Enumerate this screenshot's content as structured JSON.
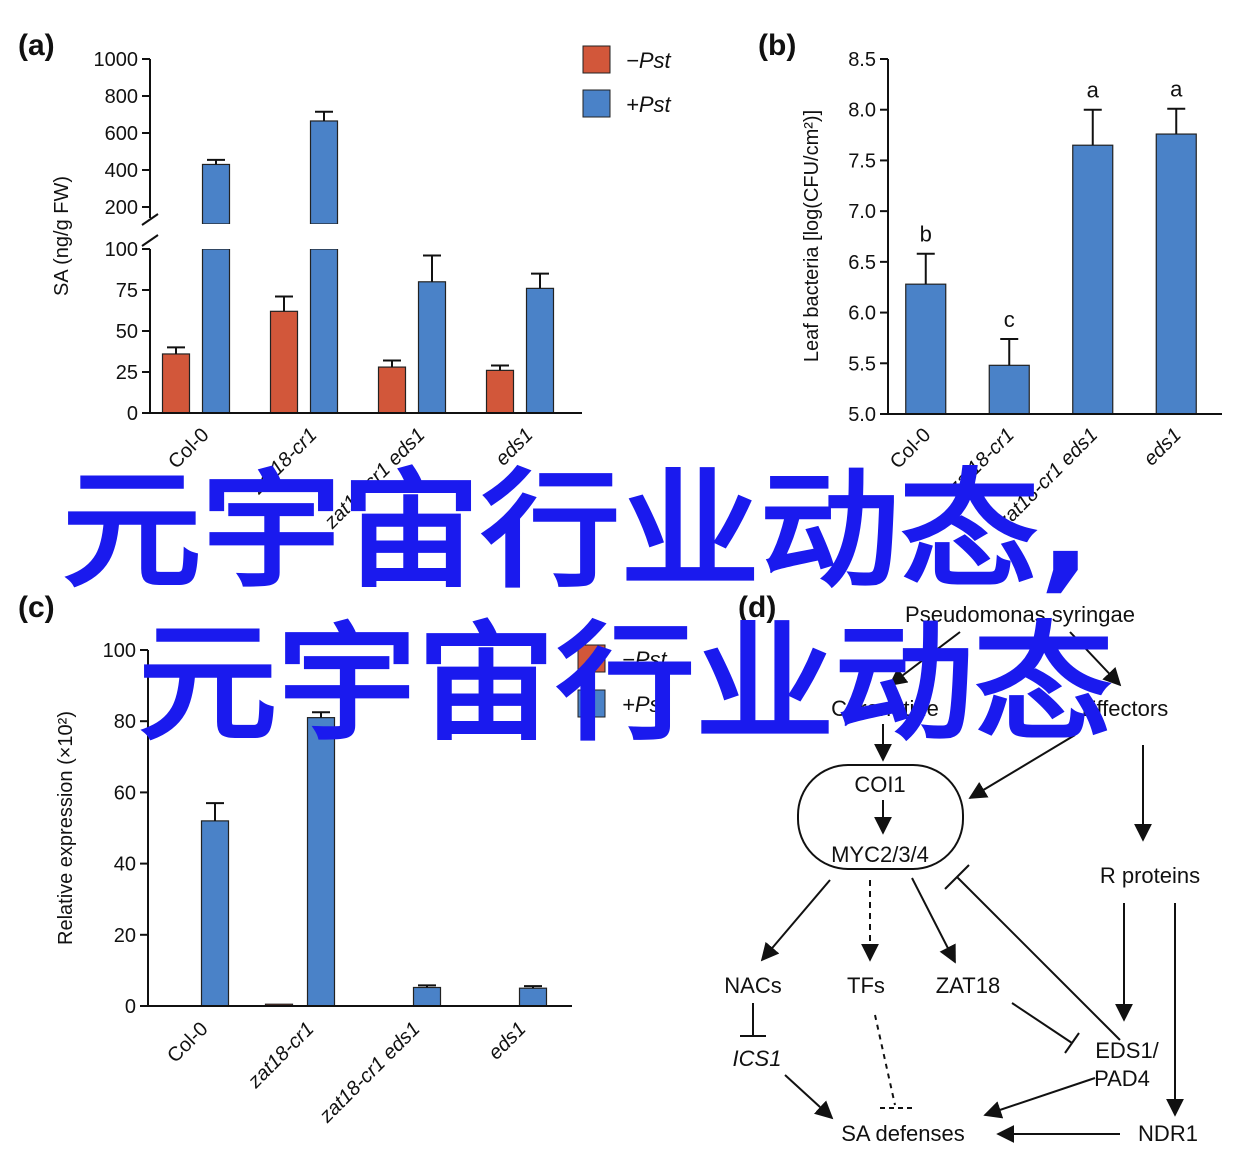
{
  "colors": {
    "minus_pst": "#d2573a",
    "plus_pst": "#4a82c8",
    "watermark": "#1a1aee"
  },
  "legend": {
    "minus": "−Pst",
    "plus": "+Pst"
  },
  "chart_data": [
    {
      "panel": "(a)",
      "type": "bar",
      "ylabel": "SA (ng/g FW)",
      "categories": [
        "Col-0",
        "zat18-cr1",
        "zat18-cr1 eds1",
        "eds1"
      ],
      "broken_axis": true,
      "lower_ylim": [
        0,
        100
      ],
      "upper_ylim": [
        200,
        1000
      ],
      "lower_ticks": [
        "0",
        "25",
        "50",
        "75",
        "100"
      ],
      "upper_ticks": [
        "200",
        "400",
        "600",
        "800",
        "1000"
      ],
      "series": [
        {
          "name": "−Pst",
          "values": [
            36,
            62,
            28,
            26
          ],
          "errors": [
            4,
            9,
            4,
            3
          ]
        },
        {
          "name": "+Pst",
          "values": [
            430,
            665,
            80,
            76
          ],
          "errors": [
            25,
            50,
            16,
            9
          ]
        }
      ]
    },
    {
      "panel": "(b)",
      "type": "bar",
      "ylabel": "Leaf bacteria [log(CFU/cm²)]",
      "categories": [
        "Col-0",
        "zat18-cr1",
        "zat18-cr1 eds1",
        "eds1"
      ],
      "ylim": [
        5.0,
        8.5
      ],
      "ticks": [
        "5.0",
        "5.5",
        "6.0",
        "6.5",
        "7.0",
        "7.5",
        "8.0",
        "8.5"
      ],
      "values": [
        6.28,
        5.48,
        7.65,
        7.76
      ],
      "errors": [
        0.3,
        0.26,
        0.35,
        0.25
      ],
      "letters": [
        "b",
        "c",
        "a",
        "a"
      ]
    },
    {
      "panel": "(c)",
      "type": "bar",
      "ylabel": "Relative expression (×10²)",
      "categories": [
        "Col-0",
        "zat18-cr1",
        "zat18-cr1 eds1",
        "eds1"
      ],
      "ylim": [
        0,
        100
      ],
      "ticks": [
        "0",
        "20",
        "40",
        "60",
        "80",
        "100"
      ],
      "series": [
        {
          "name": "−Pst",
          "values": [
            0,
            0.5,
            0,
            0
          ],
          "errors": [
            0,
            0,
            0,
            0
          ]
        },
        {
          "name": "+Pst",
          "values": [
            52,
            81,
            5.2,
            5.0
          ],
          "errors": [
            5,
            1.5,
            0.6,
            0.6
          ]
        }
      ]
    }
  ],
  "panels": {
    "a": "(a)",
    "b": "(b)",
    "c": "(c)",
    "d": "(d)"
  },
  "diagram": {
    "pathogen": "Pseudomonas syringae",
    "coronatine": "Coronatine",
    "effectors": "Effectors",
    "coi1": "COI1",
    "myc": "MYC2/3/4",
    "r_proteins": "R proteins",
    "nacs": "NACs",
    "tfs": "TFs",
    "zat18": "ZAT18",
    "ics1": "ICS1",
    "eds1_a": "EDS1/",
    "eds1_b": "PAD4",
    "sa": "SA defenses",
    "ndr1": "NDR1"
  },
  "watermark": {
    "line1": "元宇宙行业动态,",
    "line2": "元宇宙行业动态"
  }
}
